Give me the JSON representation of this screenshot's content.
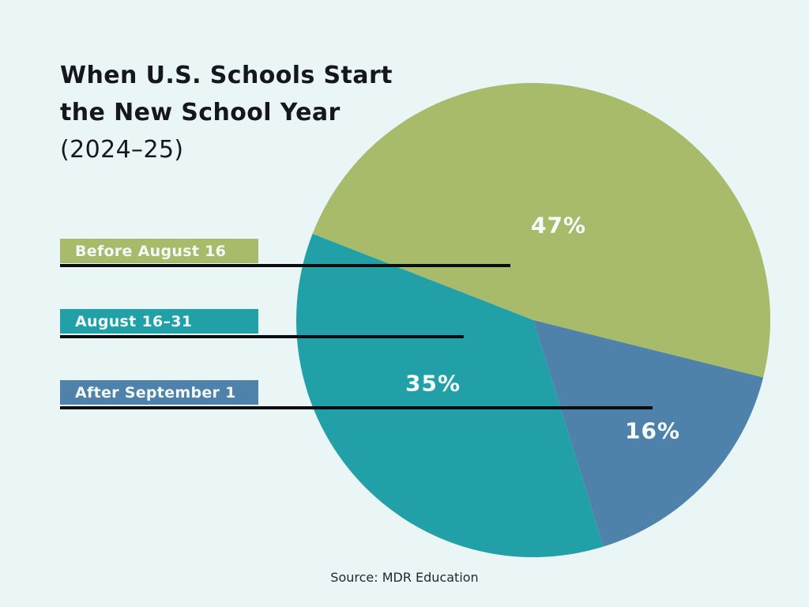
{
  "background_color": "#e9f6f5",
  "title": {
    "line1": "When U.S. Schools Start",
    "line2": "the New School Year",
    "line3": "(2024–25)"
  },
  "source_note": "Source: MDR Education",
  "chart_data": {
    "type": "pie",
    "title": "When U.S. Schools Start the New School Year (2024–25)",
    "unit": "%",
    "slices": [
      {
        "label": "Before August 16",
        "value": 47,
        "display": "47%",
        "color": "#a8bb6b"
      },
      {
        "label": "August 16–31",
        "value": 35,
        "display": "35%",
        "color": "#22a0a8"
      },
      {
        "label": "After September 1",
        "value": 16,
        "display": "16%",
        "color": "#4f82ab"
      }
    ],
    "values_sum": 98,
    "start_angle_deg": -14,
    "direction": "counterclockwise",
    "legend_position": "left",
    "leader_lines": true,
    "source": "MDR Education"
  }
}
